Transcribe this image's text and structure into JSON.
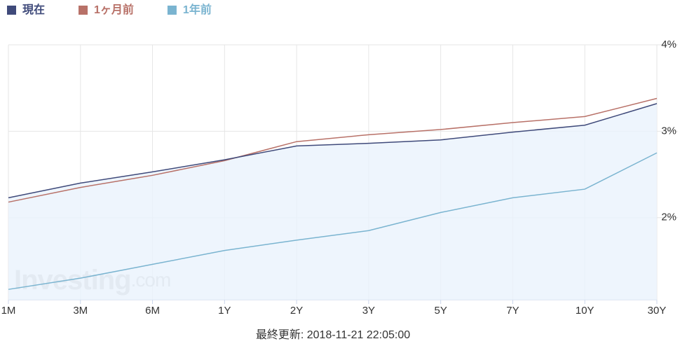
{
  "chart_data": {
    "type": "line",
    "categories": [
      "1M",
      "3M",
      "6M",
      "1Y",
      "2Y",
      "3Y",
      "5Y",
      "7Y",
      "10Y",
      "30Y"
    ],
    "series": [
      {
        "name": "現在",
        "color": "#3f4a7a",
        "values": [
          2.23,
          2.4,
          2.53,
          2.67,
          2.83,
          2.86,
          2.9,
          2.99,
          3.07,
          3.32
        ],
        "area": true
      },
      {
        "name": "1ヶ月前",
        "color": "#b87168",
        "values": [
          2.18,
          2.35,
          2.49,
          2.66,
          2.88,
          2.96,
          3.02,
          3.1,
          3.17,
          3.38
        ]
      },
      {
        "name": "1年前",
        "color": "#7ab4d0",
        "values": [
          1.17,
          1.3,
          1.46,
          1.62,
          1.74,
          1.85,
          2.06,
          2.23,
          2.33,
          2.75
        ]
      }
    ],
    "ylim": [
      1.05,
      4
    ],
    "yticks": [
      {
        "value": 2,
        "label": "2%"
      },
      {
        "value": 3,
        "label": "3%"
      },
      {
        "value": 4,
        "label": "4%"
      }
    ],
    "grid": true,
    "legend": "top-left",
    "watermark": {
      "brand": "Investing",
      "suffix": ".com"
    },
    "footer": "最終更新: 2018-11-21 22:05:00"
  }
}
